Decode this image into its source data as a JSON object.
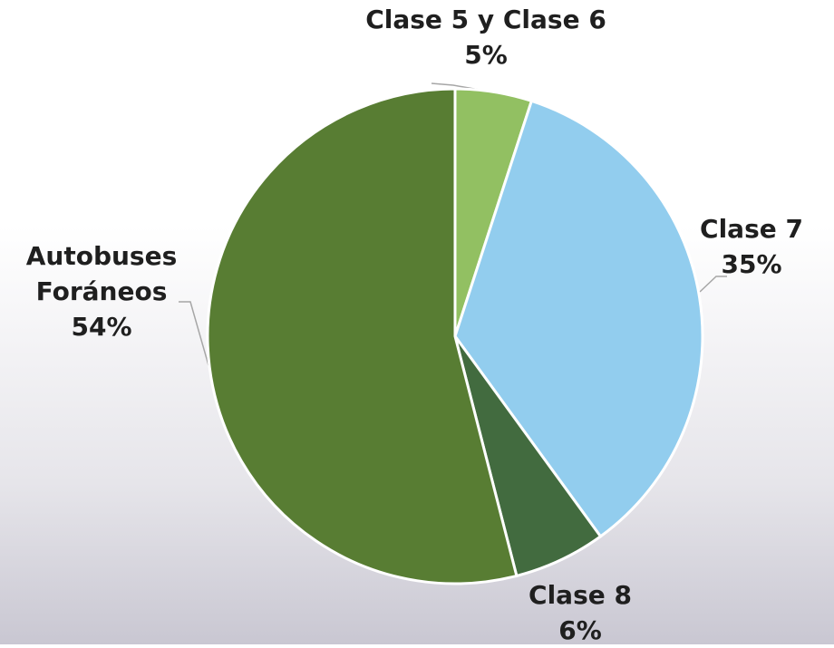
{
  "chart_data": {
    "type": "pie",
    "categories": [
      "Clase 5 y Clase 6",
      "Clase 7",
      "Clase 8",
      "Autobuses Foráneos"
    ],
    "values": [
      5,
      35,
      6,
      54
    ],
    "value_labels": [
      "5%",
      "35%",
      "6%",
      "54%"
    ],
    "colors": [
      "#92c062",
      "#92cdee",
      "#426b3f",
      "#587d33"
    ]
  }
}
